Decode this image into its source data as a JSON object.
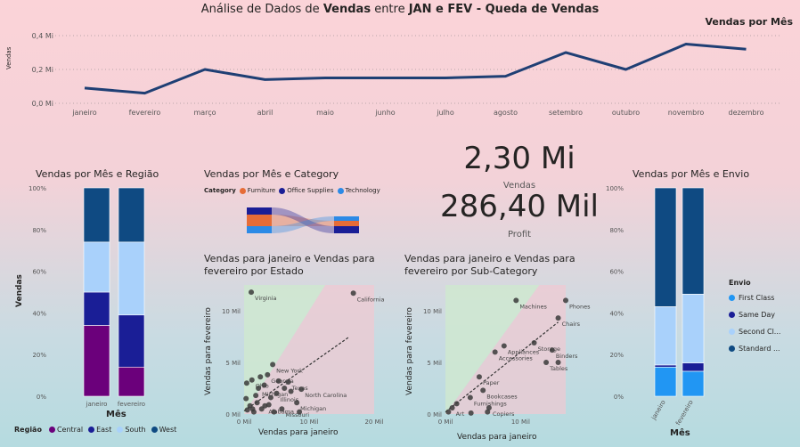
{
  "header": {
    "title_prefix": "Análise de Dados de ",
    "title_b1": "Vendas",
    "title_mid": " entre ",
    "title_b2": "JAN e FEV - Queda de Vendas"
  },
  "colors": {
    "line": "#1f3f74",
    "central": "#6b007b",
    "east": "#1a1e96",
    "south": "#a9d1fb",
    "west": "#0f4a82",
    "furniture": "#e66c37",
    "office": "#1a1e96",
    "technology": "#2c8ae6",
    "first_class": "#2196f3",
    "same_day": "#1a1e96",
    "second_class": "#a9d1fb",
    "standard": "#0f4a82",
    "dot": "#3b3b3b"
  },
  "kpi": {
    "vendas_value": "2,30 Mi",
    "vendas_label": "Vendas",
    "profit_value": "286,40 Mil",
    "profit_label": "Profit"
  },
  "chart_data": [
    {
      "id": "vendas_por_mes",
      "type": "line",
      "title": "Vendas por Mês",
      "ylabel": "Vendas",
      "yticks": [
        "0,0 Mi",
        "0,2 Mi",
        "0,4 Mi"
      ],
      "ylim": [
        0,
        0.4
      ],
      "categories": [
        "janeiro",
        "fevereiro",
        "março",
        "abril",
        "maio",
        "junho",
        "julho",
        "agosto",
        "setembro",
        "outubro",
        "novembro",
        "dezembro"
      ],
      "values": [
        0.09,
        0.06,
        0.2,
        0.14,
        0.15,
        0.15,
        0.15,
        0.16,
        0.3,
        0.2,
        0.35,
        0.32
      ],
      "grid": true
    },
    {
      "id": "vendas_mes_regiao",
      "type": "bar",
      "stacked": "100%",
      "title": "Vendas por Mês e Região",
      "xlabel": "Mês",
      "ylabel": "Vendas",
      "yticks": [
        "0%",
        "20%",
        "40%",
        "60%",
        "80%",
        "100%"
      ],
      "categories": [
        "janeiro",
        "fevereiro"
      ],
      "legend_title": "Região",
      "series": [
        {
          "name": "Central",
          "values": [
            34,
            14
          ]
        },
        {
          "name": "East",
          "values": [
            16,
            25
          ]
        },
        {
          "name": "South",
          "values": [
            24,
            35
          ]
        },
        {
          "name": "West",
          "values": [
            26,
            26
          ]
        }
      ]
    },
    {
      "id": "vendas_mes_category",
      "type": "area",
      "title": "Vendas por Mês e Category",
      "legend_title": "Category",
      "series": [
        {
          "name": "Furniture"
        },
        {
          "name": "Office Supplies"
        },
        {
          "name": "Technology"
        }
      ]
    },
    {
      "id": "scatter_estado",
      "type": "scatter",
      "title": "Vendas para janeiro e Vendas para fevereiro por Estado",
      "title_lines": [
        "Vendas para janeiro e Vendas para",
        "fevereiro por Estado"
      ],
      "xlabel": "Vendas para janeiro",
      "ylabel": "Vendas para fevereiro",
      "xticks": [
        "0 Mil",
        "10 Mil",
        "20 Mil"
      ],
      "yticks": [
        "0 Mil",
        "5 Mil",
        "10 Mil"
      ],
      "xlim": [
        0,
        20
      ],
      "ylim": [
        0,
        12.5
      ],
      "points": [
        {
          "x": 1.1,
          "y": 11.8,
          "label": "Virginia"
        },
        {
          "x": 16.8,
          "y": 11.7,
          "label": "California"
        },
        {
          "x": 4.4,
          "y": 4.8,
          "label": "New York"
        },
        {
          "x": 3.6,
          "y": 3.8,
          "label": "Georgia"
        },
        {
          "x": 6.8,
          "y": 3.1,
          "label": "Texas"
        },
        {
          "x": 1.2,
          "y": 3.3,
          "label": "Ohio"
        },
        {
          "x": 2.2,
          "y": 2.5,
          "label": "Michigan"
        },
        {
          "x": 5.0,
          "y": 2.0,
          "label": "Illinois"
        },
        {
          "x": 8.8,
          "y": 2.4,
          "label": "North Carolina"
        },
        {
          "x": 8.1,
          "y": 1.1,
          "label": "Michigan"
        },
        {
          "x": 3.2,
          "y": 0.8,
          "label": "Alabama"
        },
        {
          "x": 5.8,
          "y": 0.5,
          "label": "Missouri"
        },
        {
          "x": 0.3,
          "y": 1.5
        },
        {
          "x": 0.5,
          "y": 0.4
        },
        {
          "x": 0.9,
          "y": 0.8
        },
        {
          "x": 1.5,
          "y": 0.2
        },
        {
          "x": 2.0,
          "y": 1.1
        },
        {
          "x": 2.7,
          "y": 0.5
        },
        {
          "x": 3.1,
          "y": 2.8
        },
        {
          "x": 4.1,
          "y": 1.6
        },
        {
          "x": 4.6,
          "y": 0.2
        },
        {
          "x": 5.3,
          "y": 3.2
        },
        {
          "x": 6.2,
          "y": 2.5
        },
        {
          "x": 7.2,
          "y": 2.2
        },
        {
          "x": 8.5,
          "y": 0.2
        },
        {
          "x": 1.8,
          "y": 1.8
        },
        {
          "x": 2.5,
          "y": 3.6
        },
        {
          "x": 0.4,
          "y": 3.0
        },
        {
          "x": 3.8,
          "y": 0.9
        },
        {
          "x": 1.3,
          "y": 0.5
        }
      ],
      "trend": [
        [
          0,
          0.3
        ],
        [
          16,
          7.4
        ]
      ]
    },
    {
      "id": "scatter_subcategory",
      "type": "scatter",
      "title": "Vendas para janeiro e Vendas para fevereiro por Sub-Category",
      "title_lines": [
        "Vendas para janeiro e Vendas para",
        "fevereiro por Sub-Category"
      ],
      "xlabel": "Vendas para janeiro",
      "ylabel": "Vendas para fevereiro",
      "xticks": [
        "0 Mil",
        "10 Mil"
      ],
      "yticks": [
        "0 Mil",
        "5 Mil",
        "10 Mil"
      ],
      "xlim": [
        0,
        16
      ],
      "ylim": [
        0,
        12.5
      ],
      "points": [
        {
          "x": 9.4,
          "y": 11.0,
          "label": "Machines"
        },
        {
          "x": 16.0,
          "y": 11.0,
          "label": "Phones"
        },
        {
          "x": 15.0,
          "y": 9.3,
          "label": "Chairs"
        },
        {
          "x": 7.8,
          "y": 6.6,
          "label": "Appliances"
        },
        {
          "x": 11.8,
          "y": 6.9,
          "label": "Storage"
        },
        {
          "x": 6.6,
          "y": 6.0,
          "label": "Accessories"
        },
        {
          "x": 14.2,
          "y": 6.2,
          "label": "Binders"
        },
        {
          "x": 13.4,
          "y": 5.0,
          "label": "Tables"
        },
        {
          "x": 4.5,
          "y": 3.6,
          "label": "Paper"
        },
        {
          "x": 5.0,
          "y": 2.3,
          "label": "Bookcases"
        },
        {
          "x": 3.3,
          "y": 1.6,
          "label": "Furnishings"
        },
        {
          "x": 5.8,
          "y": 0.6,
          "label": "Copiers"
        },
        {
          "x": 0.9,
          "y": 0.6,
          "label": "Art"
        },
        {
          "x": 3.4,
          "y": 0.1
        },
        {
          "x": 0.4,
          "y": 0.2
        },
        {
          "x": 1.5,
          "y": 1.0
        },
        {
          "x": 5.6,
          "y": 0.2
        },
        {
          "x": 15.0,
          "y": 5.0
        }
      ],
      "trend": [
        [
          0,
          0.2
        ],
        [
          15,
          8.9
        ]
      ]
    },
    {
      "id": "vendas_mes_envio",
      "type": "bar",
      "stacked": "100%",
      "title": "Vendas por Mês e Envio",
      "xlabel": "Mês",
      "yticks": [
        "0%",
        "20%",
        "40%",
        "60%",
        "80%",
        "100%"
      ],
      "categories": [
        "janeiro",
        "fevereiro"
      ],
      "legend_title": "Envio",
      "series": [
        {
          "name": "First Class",
          "display": "First Class",
          "values": [
            14,
            12
          ]
        },
        {
          "name": "Same Day",
          "display": "Same Day",
          "values": [
            1,
            4
          ]
        },
        {
          "name": "Second Class",
          "display": "Second Cl...",
          "values": [
            28,
            33
          ]
        },
        {
          "name": "Standard Class",
          "display": "Standard ...",
          "values": [
            57,
            51
          ]
        }
      ]
    }
  ]
}
